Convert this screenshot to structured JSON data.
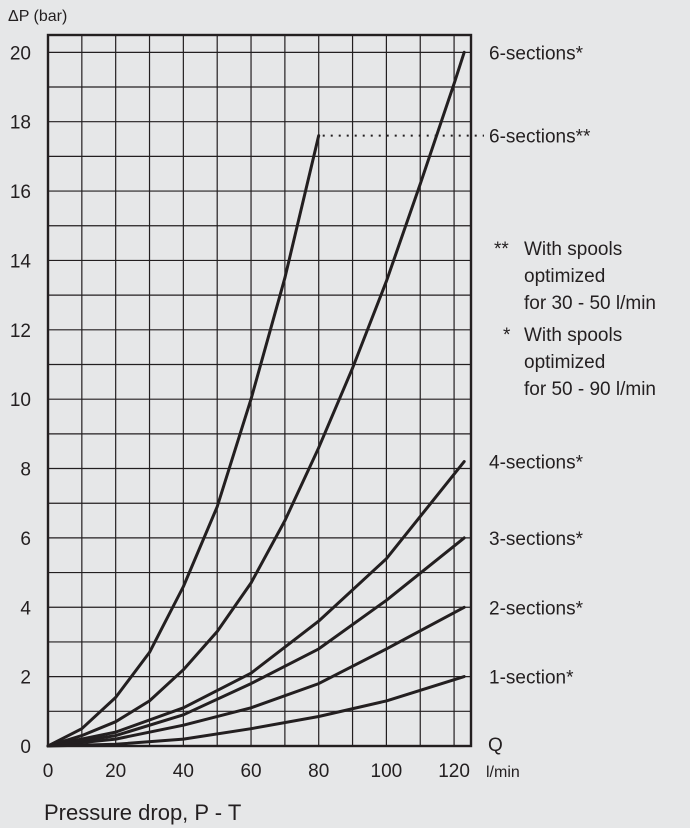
{
  "chart_data": {
    "type": "line",
    "title": "Pressure drop, P - T",
    "ylabel": "ΔP (bar)",
    "xlabel_end": "Q",
    "x_unit": "l/min",
    "xlim": [
      0,
      125
    ],
    "ylim": [
      0,
      20.5
    ],
    "x_ticks": [
      0,
      20,
      40,
      60,
      80,
      100,
      120
    ],
    "y_ticks": [
      0,
      2,
      4,
      6,
      8,
      10,
      12,
      14,
      16,
      18,
      20
    ],
    "grid": true,
    "series": [
      {
        "name": "6-sections**",
        "x": [
          0,
          10,
          20,
          30,
          40,
          50,
          60,
          70,
          80
        ],
        "y": [
          0,
          0.5,
          1.4,
          2.7,
          4.6,
          6.9,
          10.0,
          13.5,
          17.6
        ]
      },
      {
        "name": "6-sections*",
        "x": [
          0,
          10,
          20,
          30,
          40,
          50,
          60,
          70,
          80,
          90,
          100,
          110,
          120,
          123
        ],
        "y": [
          0,
          0.3,
          0.7,
          1.3,
          2.2,
          3.3,
          4.7,
          6.5,
          8.6,
          10.9,
          13.4,
          16.2,
          19.1,
          20.0
        ]
      },
      {
        "name": "4-sections*",
        "x": [
          0,
          20,
          40,
          60,
          80,
          100,
          123
        ],
        "y": [
          0,
          0.4,
          1.1,
          2.1,
          3.6,
          5.4,
          8.2
        ]
      },
      {
        "name": "3-sections*",
        "x": [
          0,
          20,
          40,
          60,
          80,
          100,
          123
        ],
        "y": [
          0,
          0.3,
          0.9,
          1.8,
          2.8,
          4.2,
          6.0
        ]
      },
      {
        "name": "2-sections*",
        "x": [
          0,
          20,
          40,
          60,
          80,
          100,
          123
        ],
        "y": [
          0,
          0.2,
          0.6,
          1.1,
          1.8,
          2.8,
          4.0
        ]
      },
      {
        "name": "1-section*",
        "x": [
          0,
          20,
          40,
          60,
          80,
          100,
          123
        ],
        "y": [
          0,
          0.05,
          0.2,
          0.5,
          0.85,
          1.3,
          2.0
        ]
      }
    ],
    "annotations": {
      "note_double_star": {
        "marker": "**",
        "lines": [
          "With spools",
          "optimized",
          "for 30 - 50 l/min"
        ]
      },
      "note_single_star": {
        "marker": "*",
        "lines": [
          "With spools",
          "optimized",
          "for 50 - 90 l/min"
        ]
      }
    },
    "dotted_leader": {
      "from_series": "6-sections**",
      "to_label": "6-sections**"
    }
  }
}
